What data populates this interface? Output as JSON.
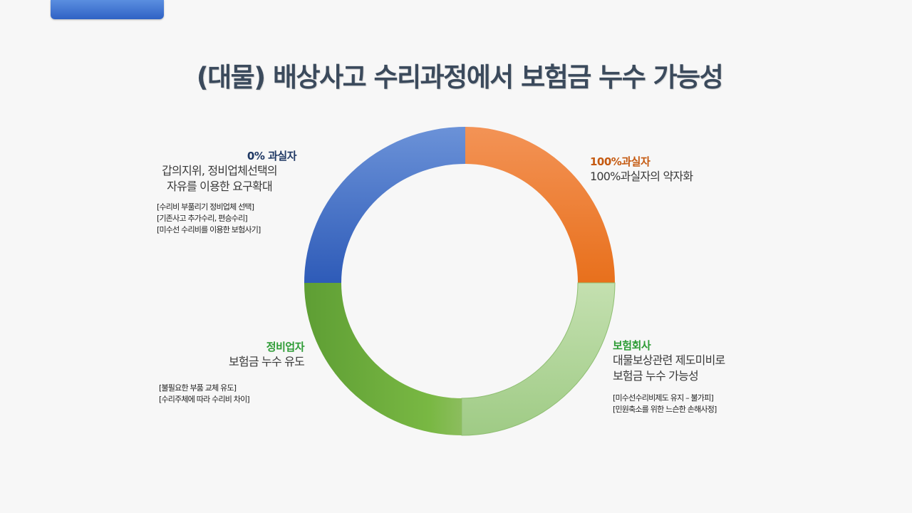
{
  "title": "(대물) 배상사고  수리과정에서 보험금 누수 가능성",
  "colors": {
    "blue": "#3f6fc7",
    "orange": "#f07d2d",
    "green": "#6cab3e",
    "light_green": "#a6cf8a",
    "head_blue": "#1f3864",
    "head_orange": "#c55a11",
    "head_green": "#2e9c36",
    "title": "#3b4a5c"
  },
  "quadrants": {
    "top_left": {
      "heading": "0% 과실자",
      "desc": [
        "갑의지위, 정비업체선택의",
        "자유를 이용한 요구확대"
      ],
      "notes": [
        "[수리비 부풀리기 정비업체 선택]",
        "[기존사고 추가수리, 편승수리]",
        "[미수선 수리비를 이용한 보험사기]"
      ]
    },
    "top_right": {
      "heading": "100%과실자",
      "desc": [
        "100%과실자의 약자화"
      ],
      "notes": []
    },
    "bottom_left": {
      "heading": "정비업자",
      "desc": [
        "보험금 누수 유도"
      ],
      "notes": [
        "[불필요한 부품 교체 유도]",
        "[수리주체에 따라 수리비 차이]"
      ]
    },
    "bottom_right": {
      "heading": "보험회사",
      "desc": [
        "대물보상관련 제도미비로",
        "보험금 누수 가능성"
      ],
      "notes": [
        "[미수선수리비제도 유지 – 불가피]",
        "[민원축소를 위한 느슨한 손해사정]"
      ]
    }
  }
}
